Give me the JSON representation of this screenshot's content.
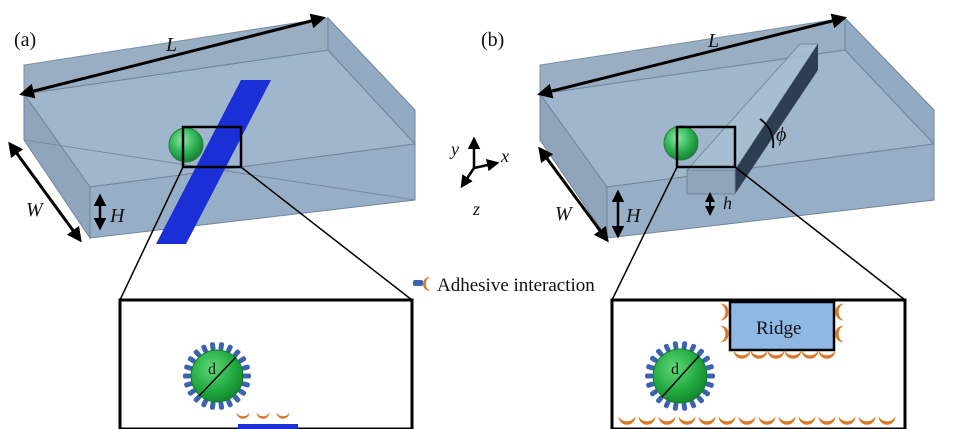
{
  "panel_a": {
    "tag": "(a)",
    "length_label": "L",
    "width_label": "W",
    "height_label": "H",
    "inset_particle_label": "d"
  },
  "panel_b": {
    "tag": "(b)",
    "length_label": "L",
    "width_label": "W",
    "height_label": "H",
    "ridge_height_label": "h",
    "angle_label": "ϕ",
    "inset_particle_label": "d",
    "ridge_label": "Ridge"
  },
  "axes": {
    "y": "y",
    "x": "x",
    "z": "z"
  },
  "legend": {
    "label": "Adhesive interaction"
  },
  "colors": {
    "channel_fill": "#9fb6cc",
    "channel_edge": "#6f8499",
    "stripe": "#1a2fd6",
    "particle": "#22b14c",
    "ligand": "#3b63b0",
    "receptor": "#d9792a",
    "ridge": "#8fb8e3"
  }
}
